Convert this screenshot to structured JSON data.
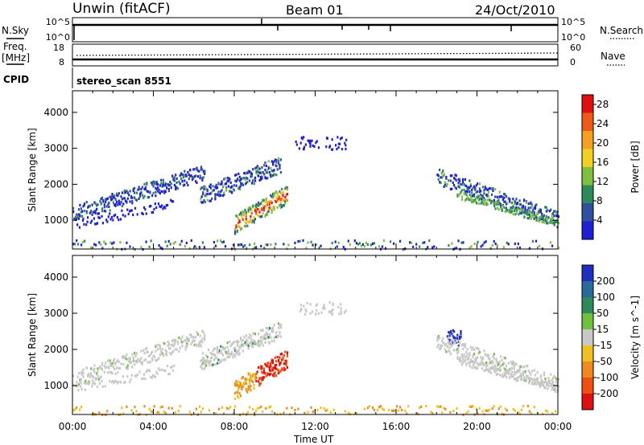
{
  "header": {
    "station": "Unwin (fitACF)",
    "beam": "Beam 01",
    "date": "24/Oct/2010"
  },
  "status_panels": {
    "nsky_label": "N.Sky",
    "nsearch_label": "N.Search",
    "noise_ticks_left": [
      "10^5",
      "10^0"
    ],
    "noise_ticks_right": [
      "10^5",
      "10^0"
    ],
    "freq_label_1": "Freq.",
    "freq_label_2": "[MHz]",
    "freq_ticks": [
      "18",
      "8"
    ],
    "nave_label": "Nave",
    "nave_ticks": [
      "60",
      "0"
    ],
    "cpid_label": "CPID",
    "cpid_value": "stereo_scan 8551"
  },
  "colors": {
    "power_scale": [
      "#1f1fd6",
      "#2f4fa0",
      "#2e8a5a",
      "#7fc040",
      "#f0d020",
      "#f5a020",
      "#f05a14",
      "#e01010"
    ],
    "velocity_scale": [
      "#1f2fc0",
      "#2a6a9a",
      "#2e8a5a",
      "#70c040",
      "#c8c8c8",
      "#f0c020",
      "#f08a20",
      "#f05010",
      "#e01010"
    ]
  },
  "chart_data": [
    {
      "type": "heatmap",
      "name": "power",
      "xlabel": "Time UT",
      "ylabel": "Slant Range [km]",
      "x_ticks": [
        "00:00",
        "04:00",
        "08:00",
        "12:00",
        "16:00",
        "20:00",
        "00:00"
      ],
      "xlim_hours": [
        0,
        24
      ],
      "ylim": [
        200,
        4600
      ],
      "y_ticks": [
        1000,
        2000,
        3000,
        4000
      ],
      "colorbar": {
        "label": "Power [dB]",
        "ticks": [
          4,
          8,
          12,
          16,
          20,
          24,
          28
        ],
        "range": [
          0,
          30
        ]
      },
      "echo_regions": [
        {
          "t_start": 0.0,
          "t_end": 6.5,
          "range_start": 850,
          "range_end": 2450,
          "value": "weak-moderate"
        },
        {
          "t_start": 6.3,
          "t_end": 10.3,
          "range_start": 1600,
          "range_end": 2700,
          "value": "moderate"
        },
        {
          "t_start": 8.0,
          "t_end": 10.6,
          "range_start": 700,
          "range_end": 1750,
          "value": "strong"
        },
        {
          "t_start": 18.0,
          "t_end": 24.0,
          "range_start": 900,
          "range_end": 2300,
          "value": "weak-moderate"
        },
        {
          "t_start": 0.0,
          "t_end": 24.0,
          "range_start": 200,
          "range_end": 450,
          "value": "weak"
        }
      ]
    },
    {
      "type": "heatmap",
      "name": "velocity",
      "xlabel": "Time UT",
      "ylabel": "Slant Range [km]",
      "x_ticks": [
        "00:00",
        "04:00",
        "08:00",
        "12:00",
        "16:00",
        "20:00",
        "00:00"
      ],
      "xlim_hours": [
        0,
        24
      ],
      "ylim": [
        200,
        4600
      ],
      "y_ticks": [
        1000,
        2000,
        3000,
        4000
      ],
      "colorbar": {
        "label": "Velocity [m s^-1]",
        "ticks": [
          "200",
          "100",
          "50",
          "15",
          "-15",
          "-50",
          "-100",
          "-200"
        ],
        "range": [
          -250,
          250
        ]
      },
      "echo_regions": [
        {
          "t_start": 0.0,
          "t_end": 6.5,
          "range_start": 850,
          "range_end": 2450,
          "value": "~0 (grey)"
        },
        {
          "t_start": 6.3,
          "t_end": 10.3,
          "range_start": 1600,
          "range_end": 2700,
          "value": "~0 (grey)"
        },
        {
          "t_start": 8.0,
          "t_end": 10.6,
          "range_start": 700,
          "range_end": 1750,
          "value": "-50 to -200"
        },
        {
          "t_start": 18.5,
          "t_end": 19.2,
          "range_start": 2100,
          "range_end": 2600,
          "value": "+100 to +200"
        },
        {
          "t_start": 18.0,
          "t_end": 24.0,
          "range_start": 900,
          "range_end": 2300,
          "value": "~0 (grey)"
        }
      ]
    }
  ]
}
